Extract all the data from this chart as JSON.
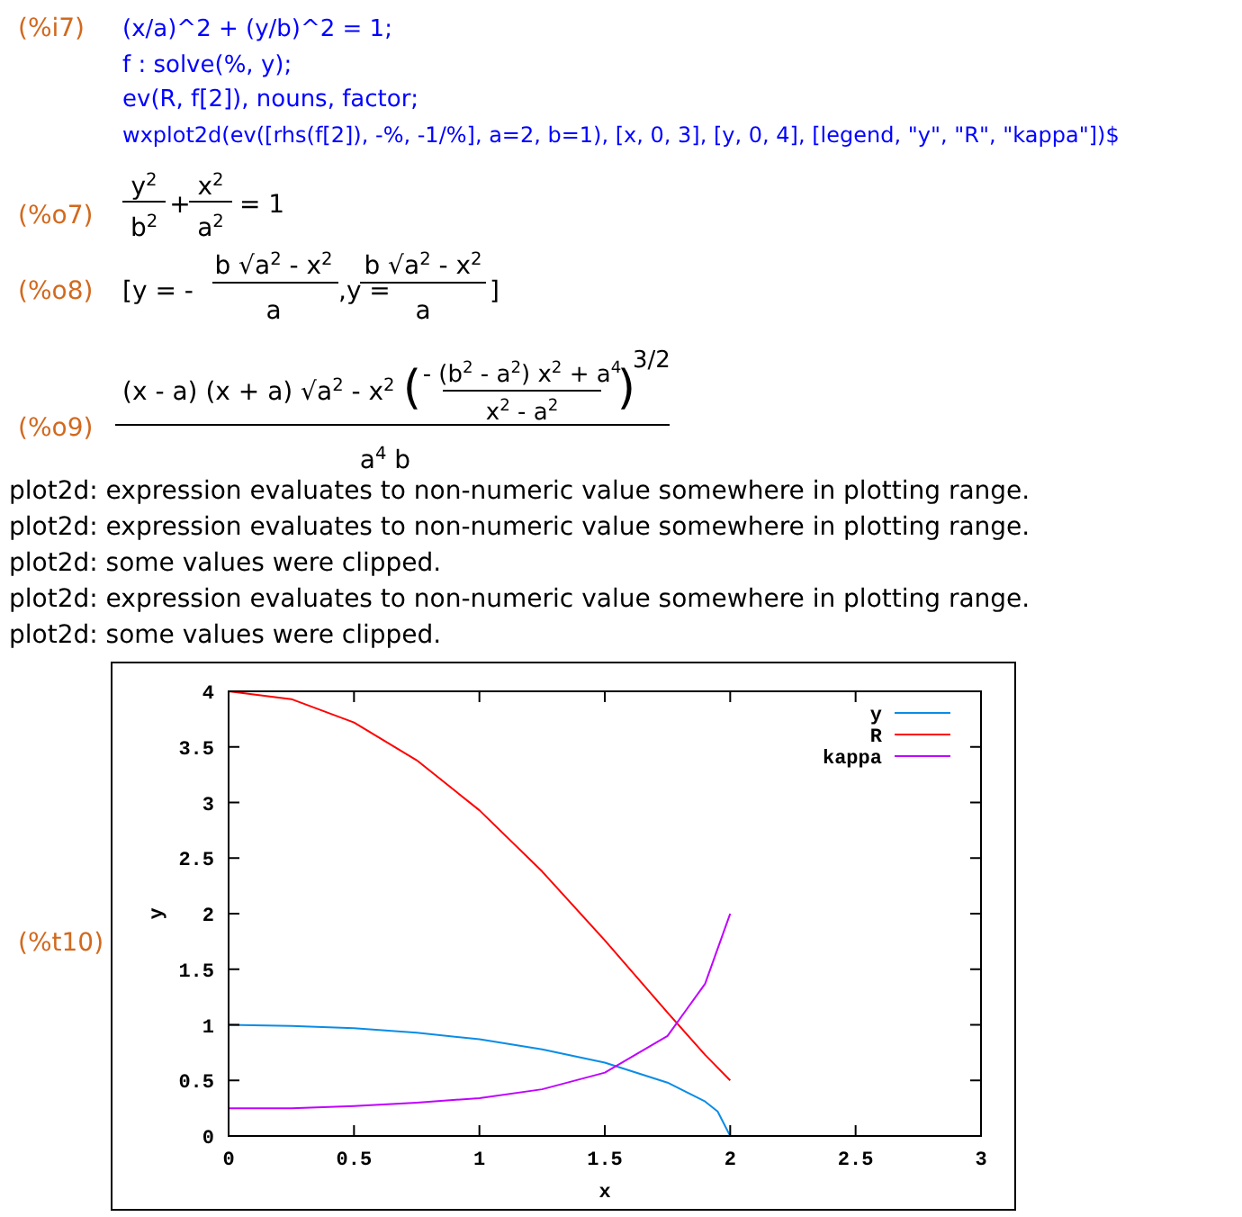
{
  "chart_data": {
    "type": "line",
    "xlabel": "x",
    "ylabel": "y",
    "xlim": [
      0,
      3
    ],
    "ylim": [
      0,
      4
    ],
    "xticks": [
      0,
      0.5,
      1,
      1.5,
      2,
      2.5,
      3
    ],
    "yticks": [
      0,
      0.5,
      1,
      1.5,
      2,
      2.5,
      3,
      3.5,
      4
    ],
    "grid": false,
    "legend": "top right",
    "marker": "none",
    "line_style": "solid",
    "series": [
      {
        "name": "y",
        "color": "#0a8ce6",
        "x": [
          0,
          0.25,
          0.5,
          0.75,
          1,
          1.25,
          1.5,
          1.75,
          1.9,
          1.95,
          2
        ],
        "values": [
          1,
          0.99,
          0.97,
          0.93,
          0.87,
          0.78,
          0.66,
          0.48,
          0.31,
          0.22,
          0
        ]
      },
      {
        "name": "R",
        "color": "#ff0000",
        "x": [
          0,
          0.25,
          0.5,
          0.75,
          1,
          1.25,
          1.5,
          1.75,
          1.9,
          2
        ],
        "values": [
          4,
          3.93,
          3.72,
          3.38,
          2.93,
          2.38,
          1.76,
          1.11,
          0.73,
          0.5
        ]
      },
      {
        "name": "kappa",
        "color": "#c000ff",
        "x": [
          0,
          0.25,
          0.5,
          0.75,
          1,
          1.25,
          1.5,
          1.75,
          1.9,
          2
        ],
        "values": [
          0.25,
          0.25,
          0.27,
          0.3,
          0.34,
          0.42,
          0.57,
          0.9,
          1.37,
          2
        ]
      }
    ],
    "annotations": [
      "(%i7)",
      "(x/a)^2 + (y/b)^2 = 1;",
      "f : solve(%, y);",
      "ev(R, f[2]), nouns, factor;",
      "wxplot2d(ev([rhs(f[2]), -%, -1/%], a=2, b=1), [x, 0, 3], [y, 0, 4], [legend, \"y\", \"R\", \"kappa\"])$",
      "(%o7)",
      "y$^{2}$",
      "b$^{2}$",
      "+",
      "x$^{2}$",
      "a$^{2}$",
      "= 1",
      "(%o8)",
      "[y = -",
      "b √a$^{2}$ - x$^{2}$",
      "a",
      ",y =",
      "b √a$^{2}$ - x$^{2}$",
      "a",
      "]",
      "(%o9)",
      "(x - a) (x + a) √a$^{2}$ - x$^{2}$",
      "(",
      "- (b$^{2}$ - a$^{2}$) x$^{2}$ + a$^{4}$",
      "x$^{2}$ - a$^{2}$",
      ")",
      "3/2",
      "a$^{4}$ b",
      "plot2d: expression evaluates to non-numeric value somewhere in plotting range.",
      "plot2d: expression evaluates to non-numeric value somewhere in plotting range.",
      "plot2d: some values were clipped.",
      "plot2d: expression evaluates to non-numeric value somewhere in plotting range.",
      "plot2d: some values were clipped.",
      "(%t10)"
    ]
  }
}
